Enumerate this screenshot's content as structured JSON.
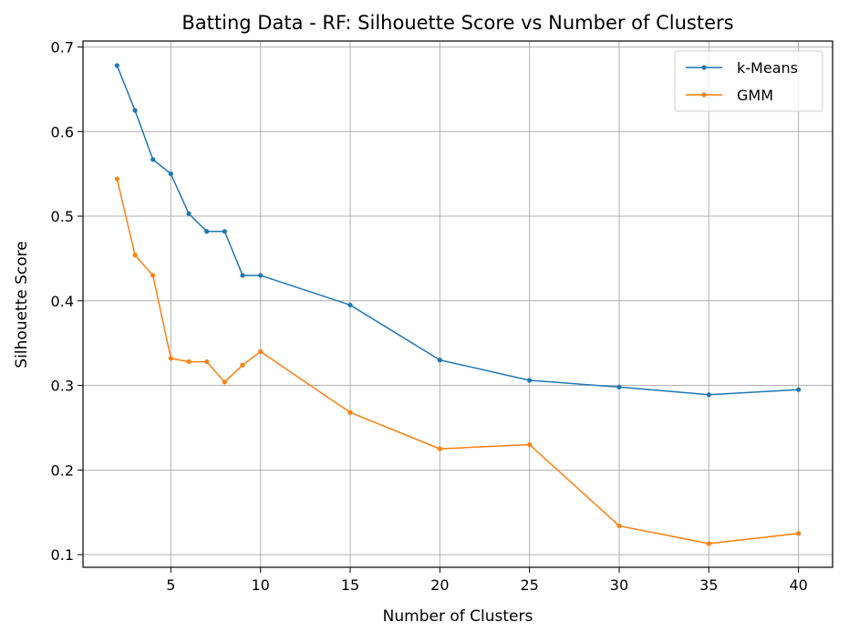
{
  "chart_data": {
    "type": "line",
    "title": "Batting Data - RF: Silhouette Score vs Number of Clusters",
    "xlabel": "Number of Clusters",
    "ylabel": "Silhouette Score",
    "xlim": [
      0.1,
      41.9
    ],
    "ylim": [
      0.085,
      0.707
    ],
    "xticks": [
      5,
      10,
      15,
      20,
      25,
      30,
      35,
      40
    ],
    "yticks": [
      0.1,
      0.2,
      0.3,
      0.4,
      0.5,
      0.6,
      0.7
    ],
    "grid": true,
    "legend_position": "top-right",
    "x": [
      2,
      3,
      4,
      5,
      6,
      7,
      8,
      9,
      10,
      15,
      20,
      25,
      30,
      35,
      40
    ],
    "series": [
      {
        "name": "k-Means",
        "color": "#1f77b4",
        "values": [
          0.678,
          0.625,
          0.567,
          0.55,
          0.503,
          0.482,
          0.482,
          0.43,
          0.43,
          0.395,
          0.33,
          0.306,
          0.298,
          0.289,
          0.295
        ]
      },
      {
        "name": "GMM",
        "color": "#ff7f0e",
        "values": [
          0.544,
          0.454,
          0.43,
          0.332,
          0.328,
          0.328,
          0.304,
          0.324,
          0.34,
          0.268,
          0.225,
          0.23,
          0.134,
          0.113,
          0.125
        ]
      }
    ]
  }
}
